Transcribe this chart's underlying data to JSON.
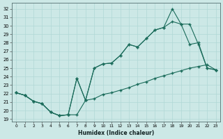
{
  "bg_color": "#cce8e6",
  "line_color": "#1a6b5a",
  "grid_color": "#b0d8d5",
  "xlabel": "Humidex (Indice chaleur)",
  "xlim": [
    -0.5,
    23.5
  ],
  "ylim": [
    18.7,
    32.7
  ],
  "yticks": [
    19,
    20,
    21,
    22,
    23,
    24,
    25,
    26,
    27,
    28,
    29,
    30,
    31,
    32
  ],
  "xticks": [
    0,
    1,
    2,
    3,
    4,
    5,
    6,
    7,
    8,
    9,
    10,
    11,
    12,
    13,
    14,
    15,
    16,
    17,
    18,
    19,
    20,
    21,
    22,
    23
  ],
  "line1_x": [
    0,
    1,
    2,
    3,
    4,
    5,
    6,
    7,
    8,
    9,
    10,
    11,
    12,
    13,
    14,
    15,
    16,
    17,
    18,
    19,
    20,
    21,
    22,
    23
  ],
  "line1_y": [
    22.1,
    21.8,
    21.1,
    20.8,
    19.8,
    19.4,
    19.5,
    19.5,
    21.2,
    21.4,
    21.9,
    22.1,
    22.4,
    22.7,
    23.1,
    23.4,
    23.8,
    24.1,
    24.4,
    24.7,
    25.0,
    25.2,
    25.4,
    24.8
  ],
  "line2_x": [
    0,
    1,
    2,
    3,
    4,
    5,
    6,
    7,
    8,
    9,
    10,
    11,
    12,
    13,
    14,
    15,
    16,
    17,
    18,
    19,
    20,
    21,
    22,
    23
  ],
  "line2_y": [
    22.1,
    21.8,
    21.1,
    20.8,
    19.8,
    19.4,
    19.5,
    23.8,
    21.2,
    25.0,
    25.5,
    25.6,
    26.5,
    27.8,
    27.5,
    28.5,
    29.5,
    29.8,
    30.5,
    30.2,
    27.8,
    28.0,
    25.0,
    24.8
  ],
  "line3_x": [
    0,
    1,
    2,
    3,
    4,
    5,
    6,
    7,
    8,
    9,
    10,
    11,
    12,
    13,
    14,
    15,
    16,
    17,
    18,
    19,
    20,
    21,
    22,
    23
  ],
  "line3_y": [
    22.1,
    21.8,
    21.1,
    20.8,
    19.8,
    19.4,
    19.5,
    23.8,
    21.2,
    25.0,
    25.5,
    25.6,
    26.5,
    27.8,
    27.5,
    28.5,
    29.5,
    29.8,
    32.0,
    30.2,
    30.2,
    27.8,
    25.0,
    24.8
  ]
}
